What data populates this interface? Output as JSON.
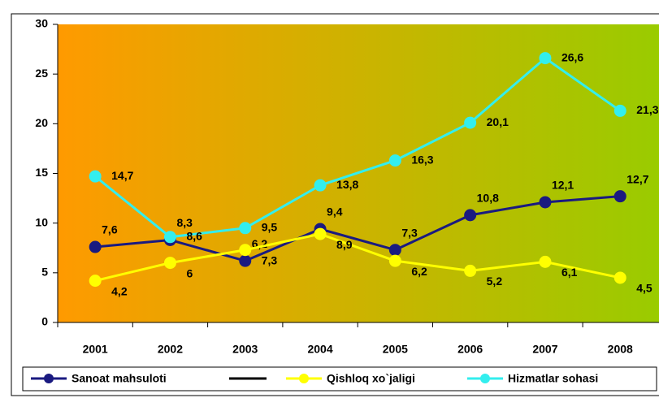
{
  "chart_data": {
    "type": "line",
    "categories": [
      "2001",
      "2002",
      "2003",
      "2004",
      "2005",
      "2006",
      "2007",
      "2008"
    ],
    "series": [
      {
        "name": "Sanoat mahsuloti",
        "color": "#1a1a80",
        "values": [
          7.6,
          8.3,
          6.2,
          9.4,
          7.3,
          10.8,
          12.1,
          12.7
        ],
        "value_labels": [
          "7,6",
          "8,3",
          "6,2",
          "9,4",
          "7,3",
          "10,8",
          "12,1",
          "12,7"
        ]
      },
      {
        "name": "Qishloq xo`jaligi",
        "color": "#ffff00",
        "values": [
          4.2,
          6,
          7.3,
          8.9,
          6.2,
          5.2,
          6.1,
          4.5
        ],
        "value_labels": [
          "4,2",
          "6",
          "7,3",
          "8,9",
          "6,2",
          "5,2",
          "6,1",
          "4,5"
        ]
      },
      {
        "name": "Hizmatlar sohasi",
        "color": "#33eeee",
        "values": [
          14.7,
          8.6,
          9.5,
          13.8,
          16.3,
          20.1,
          26.6,
          21.3
        ],
        "value_labels": [
          "14,7",
          "8,6",
          "9,5",
          "13,8",
          "16,3",
          "20,1",
          "26,6",
          "21,3"
        ]
      }
    ],
    "ylim": [
      0,
      30
    ],
    "yticks": [
      0,
      5,
      10,
      15,
      20,
      25,
      30
    ],
    "legend": "bottom"
  }
}
